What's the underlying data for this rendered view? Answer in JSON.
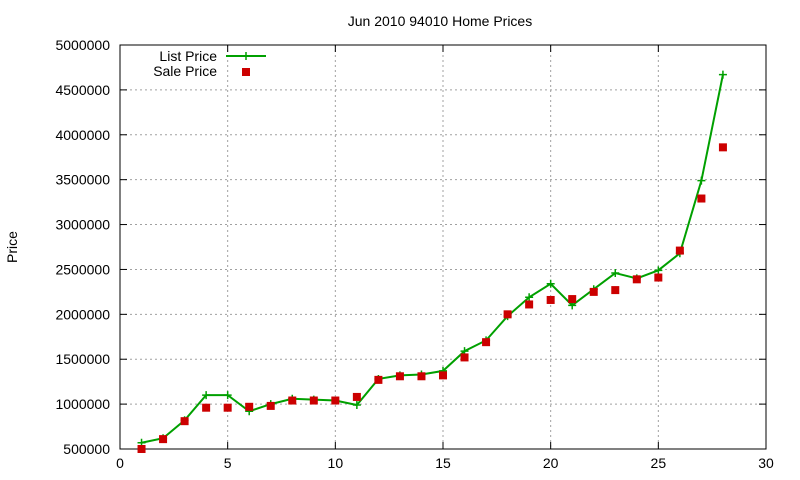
{
  "chart_data": {
    "type": "line",
    "title": "Jun 2010 94010 Home Prices",
    "xlabel": "",
    "ylabel": "Price",
    "xlim": [
      0,
      30
    ],
    "ylim": [
      500000,
      5000000
    ],
    "x_ticks": [
      0,
      5,
      10,
      15,
      20,
      25,
      30
    ],
    "y_ticks": [
      500000,
      1000000,
      1500000,
      2000000,
      2500000,
      3000000,
      3500000,
      4000000,
      4500000,
      5000000
    ],
    "x_tick_labels": [
      "0",
      "5",
      "10",
      "15",
      "20",
      "25",
      "30"
    ],
    "y_tick_labels": [
      "500000",
      "1000000",
      "1500000",
      "2000000",
      "2500000",
      "3000000",
      "3500000",
      "4000000",
      "4500000",
      "5000000"
    ],
    "grid": true,
    "legend_position": "top-left",
    "series": [
      {
        "name": "List Price",
        "style": "line-with-plus",
        "color": "#00a000",
        "x": [
          1,
          2,
          3,
          4,
          5,
          6,
          7,
          8,
          9,
          10,
          11,
          12,
          13,
          14,
          15,
          16,
          17,
          18,
          19,
          20,
          21,
          22,
          23,
          24,
          25,
          26,
          27,
          28
        ],
        "y": [
          570000,
          620000,
          820000,
          1100000,
          1100000,
          920000,
          1000000,
          1060000,
          1050000,
          1040000,
          990000,
          1280000,
          1320000,
          1330000,
          1370000,
          1590000,
          1710000,
          1980000,
          2190000,
          2340000,
          2100000,
          2280000,
          2460000,
          2400000,
          2490000,
          2680000,
          3490000,
          4670000
        ]
      },
      {
        "name": "Sale Price",
        "style": "square-markers",
        "color": "#cc0000",
        "x": [
          1,
          2,
          3,
          4,
          5,
          6,
          7,
          8,
          9,
          10,
          11,
          12,
          13,
          14,
          15,
          16,
          17,
          18,
          19,
          20,
          21,
          22,
          23,
          24,
          25,
          26,
          27,
          28
        ],
        "y": [
          500000,
          610000,
          810000,
          960000,
          960000,
          970000,
          980000,
          1040000,
          1040000,
          1040000,
          1080000,
          1270000,
          1310000,
          1310000,
          1320000,
          1520000,
          1690000,
          2000000,
          2110000,
          2160000,
          2170000,
          2250000,
          2270000,
          2390000,
          2410000,
          2710000,
          3290000,
          3860000
        ]
      }
    ]
  }
}
